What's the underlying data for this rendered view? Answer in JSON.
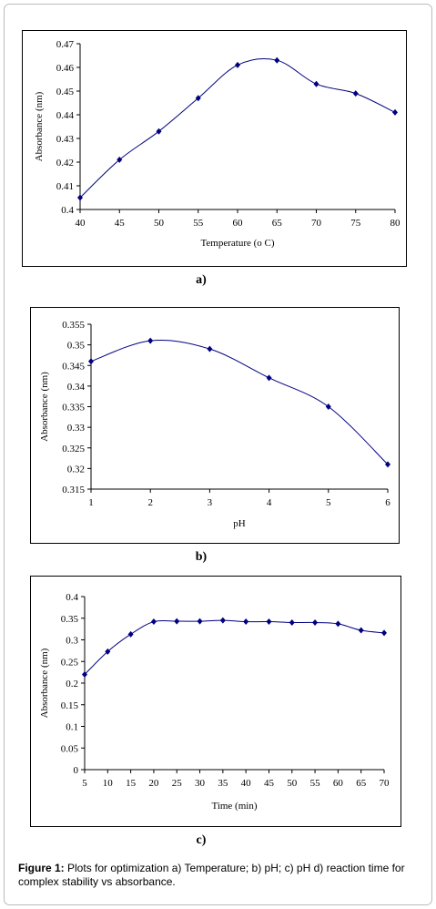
{
  "chart_data": [
    {
      "type": "line",
      "label": "a)",
      "x_label": "Temperature (o C)",
      "y_label": "Absorbance (nm)",
      "x": [
        40,
        45,
        50,
        55,
        60,
        65,
        70,
        75,
        80
      ],
      "values": [
        0.405,
        0.421,
        0.433,
        0.447,
        0.461,
        0.463,
        0.453,
        0.449,
        0.441
      ],
      "color": "#000080",
      "xlim": [
        40,
        80
      ],
      "xticks": [
        40,
        45,
        50,
        55,
        60,
        65,
        70,
        75,
        80
      ],
      "ylim": [
        0.4,
        0.47
      ],
      "yticks": [
        0.4,
        0.41,
        0.42,
        0.43,
        0.44,
        0.45,
        0.46,
        0.47
      ]
    },
    {
      "type": "line",
      "label": "b)",
      "x_label": "pH",
      "y_label": "Absorbance (nm)",
      "x": [
        1,
        2,
        3,
        4,
        5,
        6
      ],
      "values": [
        0.346,
        0.351,
        0.349,
        0.342,
        0.335,
        0.321
      ],
      "color": "#000080",
      "xlim": [
        1,
        6
      ],
      "xticks": [
        1,
        2,
        3,
        4,
        5,
        6
      ],
      "ylim": [
        0.315,
        0.355
      ],
      "yticks": [
        0.315,
        0.32,
        0.325,
        0.33,
        0.335,
        0.34,
        0.345,
        0.35,
        0.355
      ]
    },
    {
      "type": "line",
      "label": "c)",
      "x_label": "Time (min)",
      "y_label": "Absorbance (nm)",
      "x": [
        5,
        10,
        15,
        20,
        25,
        30,
        35,
        40,
        45,
        50,
        55,
        60,
        65,
        70
      ],
      "values": [
        0.22,
        0.273,
        0.313,
        0.342,
        0.343,
        0.343,
        0.345,
        0.342,
        0.342,
        0.34,
        0.34,
        0.337,
        0.322,
        0.316
      ],
      "color": "#000080",
      "xlim": [
        5,
        70
      ],
      "xticks": [
        5,
        10,
        15,
        20,
        25,
        30,
        35,
        40,
        45,
        50,
        55,
        60,
        65,
        70
      ],
      "ylim": [
        0,
        0.4
      ],
      "yticks": [
        0,
        0.05,
        0.1,
        0.15,
        0.2,
        0.25,
        0.3,
        0.35,
        0.4
      ]
    }
  ],
  "caption": {
    "label": "Figure 1:",
    "text": "Plots for optimization a) Temperature; b) pH; c) pH d) reaction time for complex stability vs absorbance."
  }
}
